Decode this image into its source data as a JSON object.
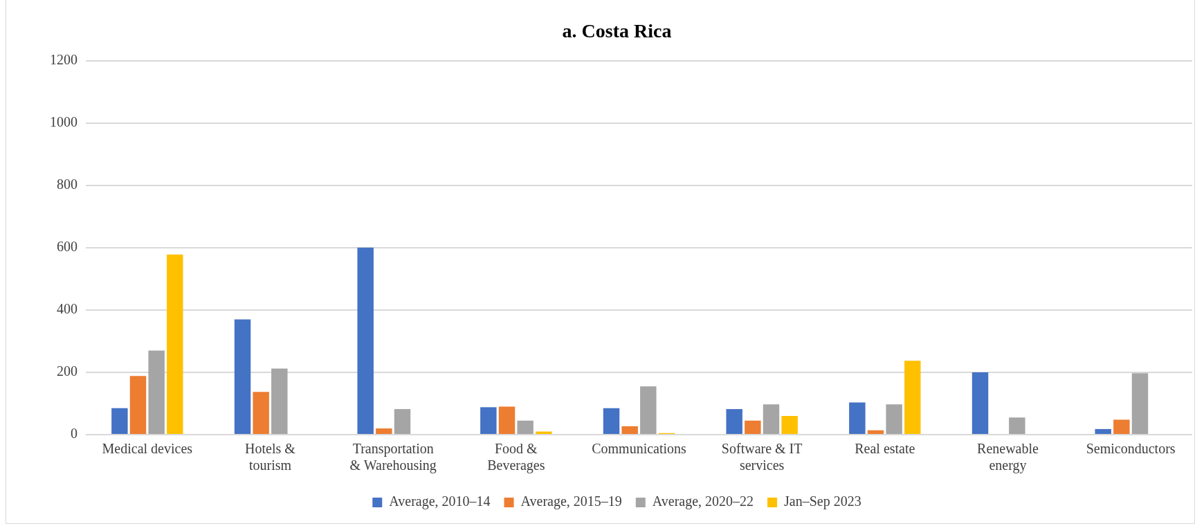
{
  "chart_data": {
    "type": "bar",
    "title": "a. Costa Rica",
    "categories": [
      "Medical devices",
      "Hotels &\ntourism",
      "Transportation\n& Warehousing",
      "Food &\nBeverages",
      "Communications",
      "Software & IT\nservices",
      "Real estate",
      "Renewable\nenergy",
      "Semiconductors"
    ],
    "series": [
      {
        "name": "Average, 2010–14",
        "color": "#4472c4",
        "values": [
          85,
          370,
          600,
          88,
          85,
          82,
          103,
          200,
          18
        ]
      },
      {
        "name": "Average, 2015–19",
        "color": "#ed7d31",
        "values": [
          188,
          137,
          20,
          90,
          27,
          45,
          14,
          null,
          48
        ]
      },
      {
        "name": "Average, 2020–22",
        "color": "#a5a5a5",
        "values": [
          270,
          212,
          82,
          45,
          155,
          97,
          97,
          55,
          197
        ]
      },
      {
        "name": "Jan–Sep 2023",
        "color": "#ffc000",
        "values": [
          578,
          null,
          null,
          10,
          5,
          60,
          237,
          null,
          null
        ]
      }
    ],
    "ylim": [
      0,
      1200
    ],
    "yticks": [
      0,
      200,
      400,
      600,
      800,
      1000,
      1200
    ],
    "grid": "y",
    "legend": "bottom"
  }
}
